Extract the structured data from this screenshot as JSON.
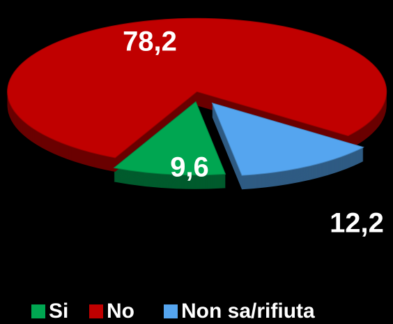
{
  "chart_data": {
    "type": "pie",
    "categories": [
      "Si",
      "No",
      "Non sa/rifiuta"
    ],
    "values": [
      9.6,
      78.2,
      12.2
    ],
    "value_labels": [
      "9,6",
      "78,2",
      "12,2"
    ],
    "colors": [
      "#00a651",
      "#c00000",
      "#55a5ef"
    ],
    "legend": "bottom"
  }
}
